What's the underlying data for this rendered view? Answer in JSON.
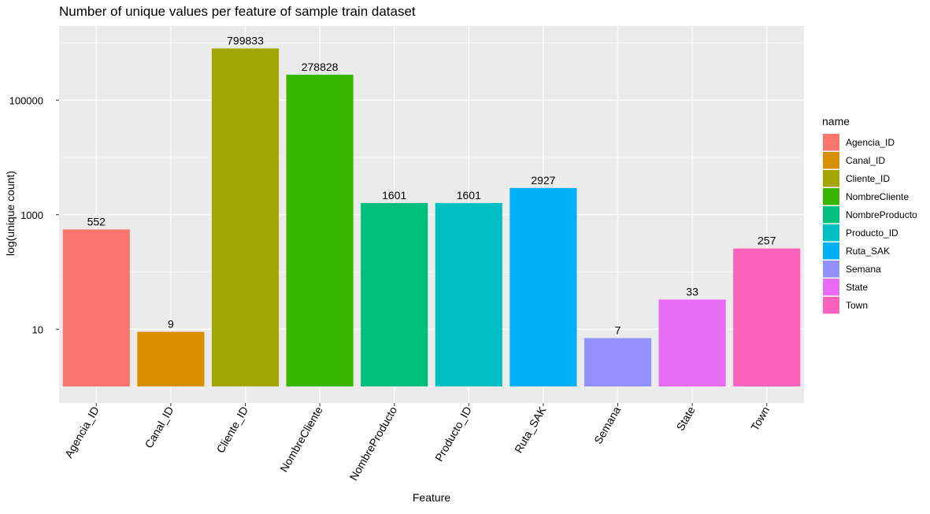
{
  "chart_data": {
    "type": "bar",
    "title": "Number of unique values per feature of sample train dataset",
    "xlabel": "Feature",
    "ylabel": "log(unique count)",
    "y_scale": "log10",
    "ylim": [
      1,
      8000000
    ],
    "yticks": [
      {
        "value": 10,
        "label": "10"
      },
      {
        "value": 1000,
        "label": "1000"
      },
      {
        "value": 100000,
        "label": "100000"
      }
    ],
    "grid": true,
    "legend_title": "name",
    "legend_position": "right",
    "categories": [
      "Agencia_ID",
      "Canal_ID",
      "Cliente_ID",
      "NombreCliente",
      "NombreProducto",
      "Producto_ID",
      "Ruta_SAK",
      "Semana",
      "State",
      "Town"
    ],
    "values": [
      552,
      9,
      799833,
      278828,
      1601,
      1601,
      2927,
      7,
      33,
      257
    ],
    "data_labels": [
      "552",
      "9",
      "799833",
      "278828",
      "1601",
      "1601",
      "2927",
      "7",
      "33",
      "257"
    ],
    "colors": [
      "#F8766D",
      "#D89000",
      "#A3A500",
      "#39B600",
      "#00BF7D",
      "#00BFC4",
      "#00B0F6",
      "#9590FF",
      "#E76BF3",
      "#FF62BC"
    ],
    "panel_background": "#EBEBEB",
    "grid_color": "#FFFFFF"
  }
}
